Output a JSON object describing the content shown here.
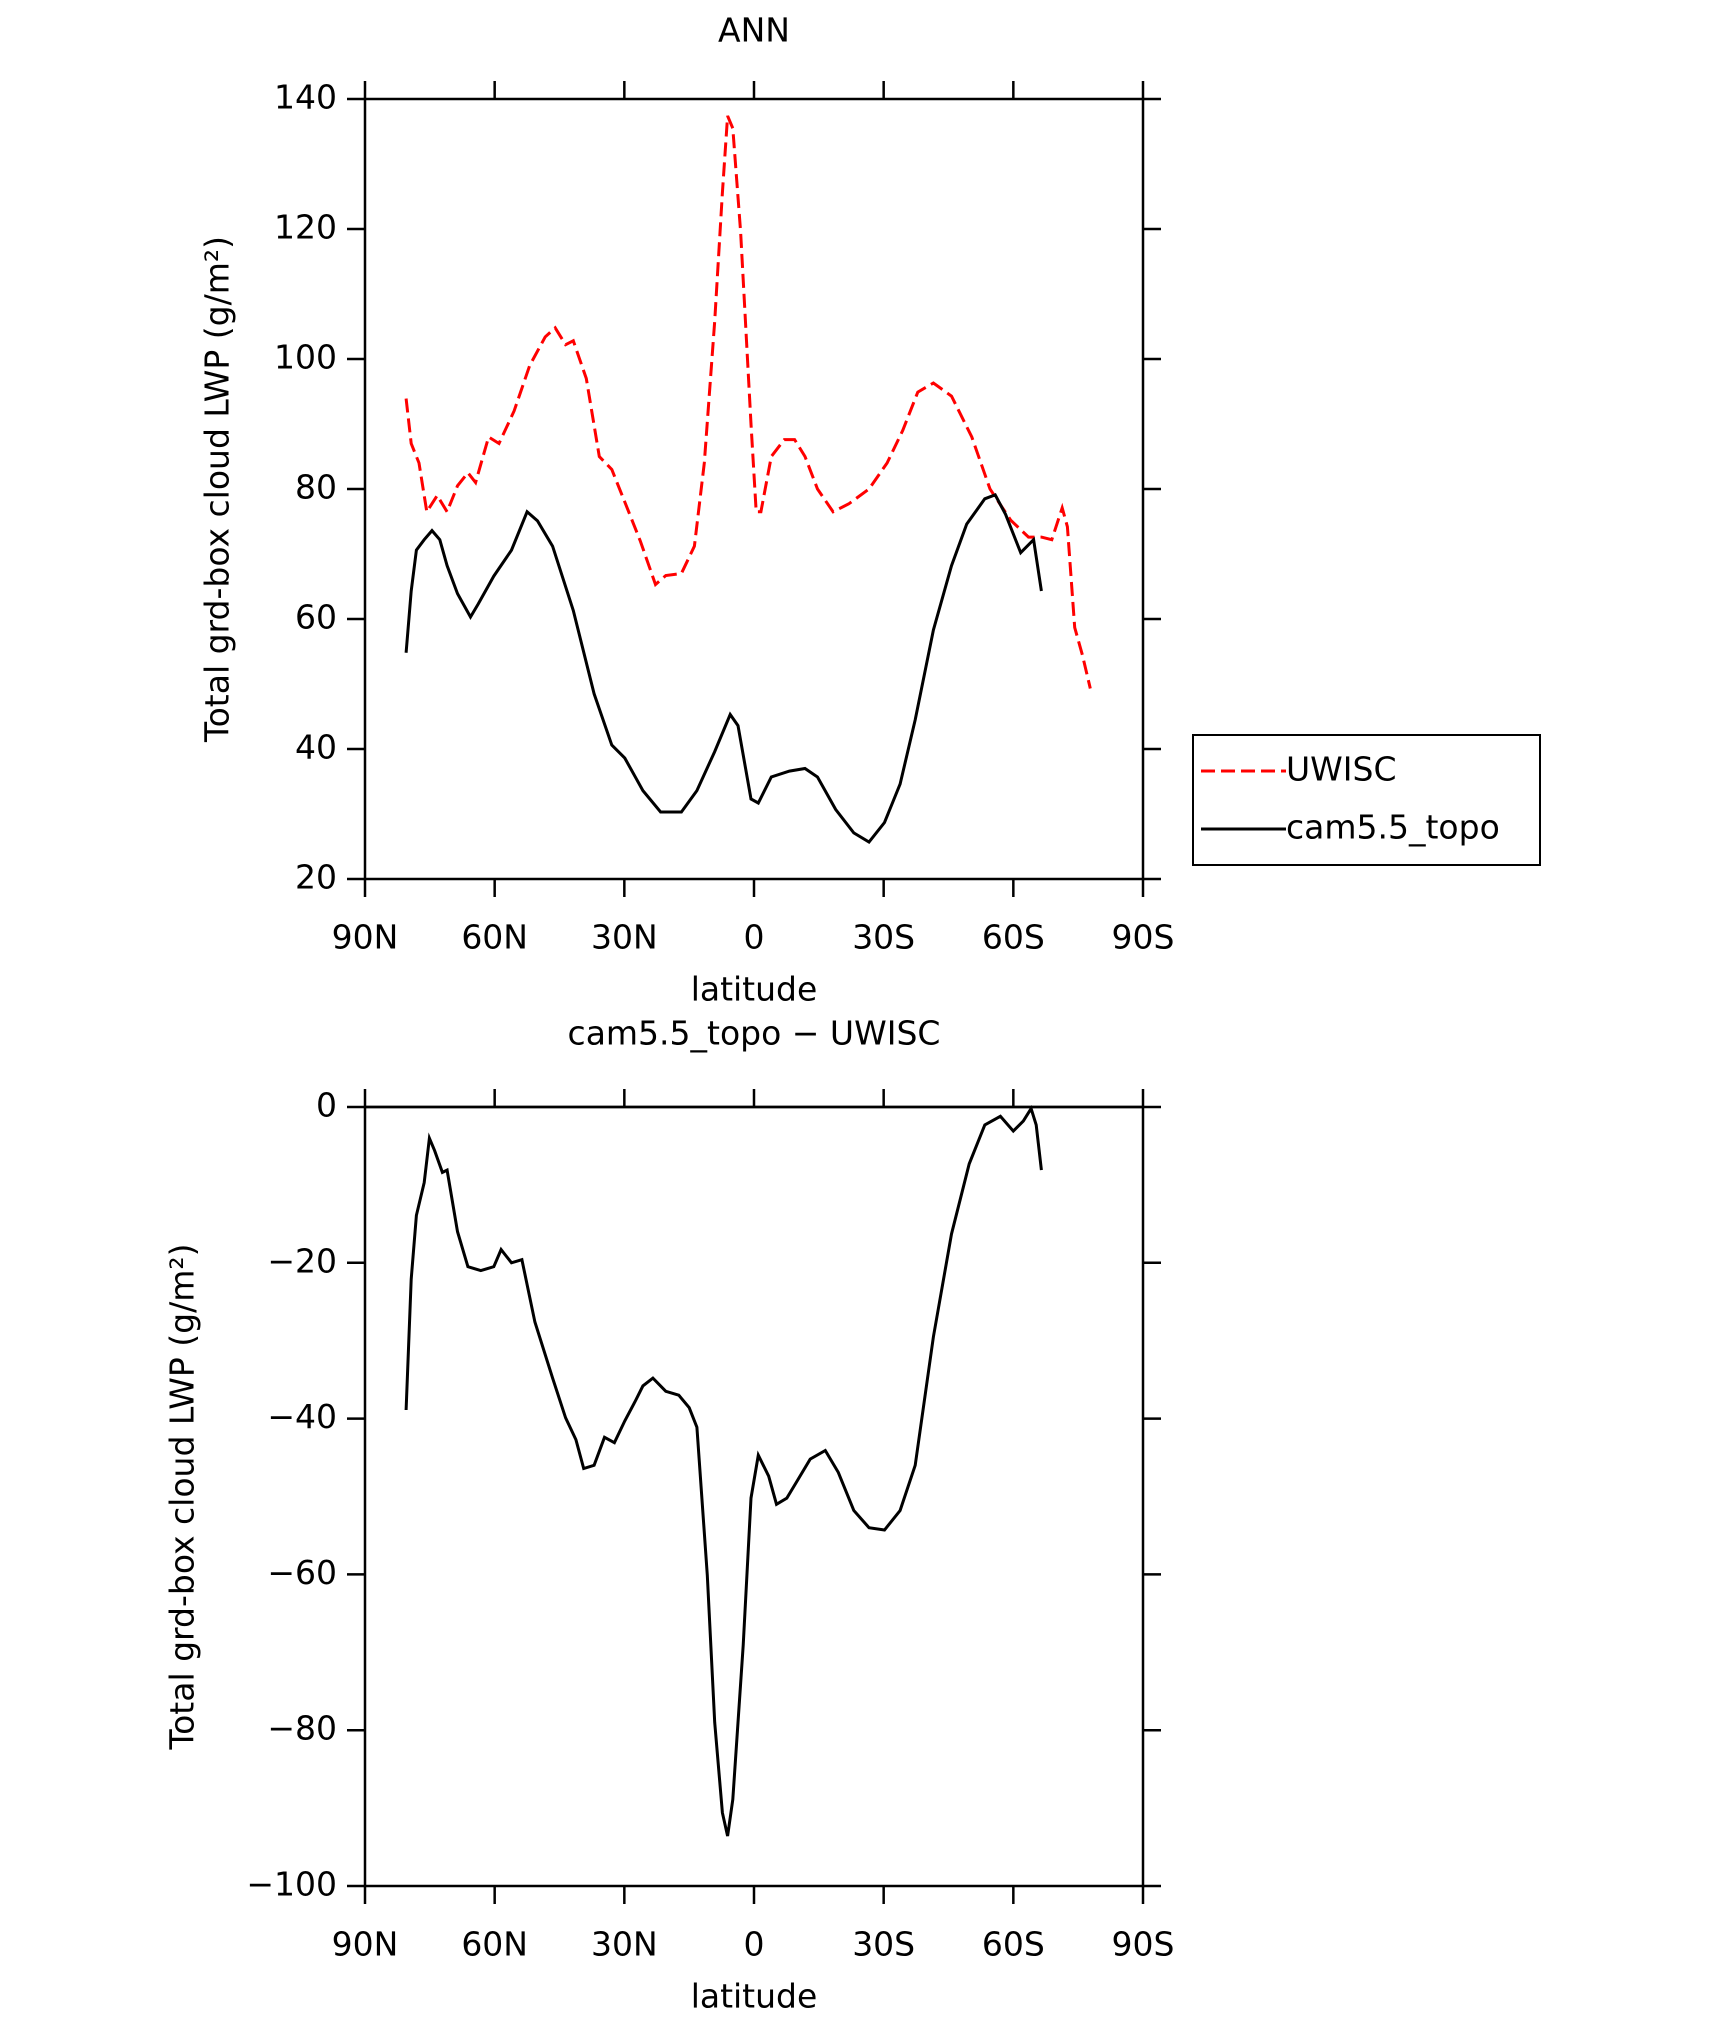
{
  "chart_data": [
    {
      "type": "line",
      "title": "ANN",
      "xlabel": "latitude",
      "ylabel": "Total grd-box cloud LWP (g/m²)",
      "xlim": [
        90,
        -90
      ],
      "xticks": [
        {
          "value": 90,
          "label": "90N"
        },
        {
          "value": 60,
          "label": "60N"
        },
        {
          "value": 30,
          "label": "30N"
        },
        0,
        {
          "value": -30,
          "label": "30S"
        },
        {
          "value": -60,
          "label": "60S"
        },
        {
          "value": -90,
          "label": "90S"
        }
      ],
      "ylim": [
        20,
        140
      ],
      "yticks": [
        20,
        40,
        60,
        80,
        100,
        120,
        140
      ],
      "legend": "right",
      "series": [
        {
          "name": "UWISC",
          "color": "#ff0000",
          "linestyle": "dashed",
          "x": [
            80.5,
            79.3,
            77.5,
            75.7,
            73.3,
            71,
            68.6,
            66.2,
            64.4,
            61.4,
            59,
            55.5,
            51.9,
            48.3,
            46,
            43.6,
            41.8,
            38.8,
            35.8,
            32.9,
            29.9,
            26.3,
            22.8,
            20.4,
            16.8,
            13.8,
            11.5,
            9.1,
            7.3,
            6.1,
            4.9,
            3.1,
            0.7,
            -0.5,
            -1.6,
            -4,
            -7,
            -9.4,
            -11.8,
            -14.7,
            -18.3,
            -21.9,
            -26.6,
            -30.8,
            -34.4,
            -37.9,
            -41.5,
            -45.7,
            -50.4,
            -54.6,
            -59.4,
            -63.5,
            -66.5,
            -68.9,
            -71.3,
            -72.5,
            -74.2,
            -76,
            -77.8
          ],
          "values": [
            93.9,
            87,
            84,
            76.5,
            79,
            76.5,
            80.5,
            82.5,
            81,
            88,
            87,
            92,
            99,
            103.4,
            104.8,
            102.2,
            102.8,
            97,
            85,
            83,
            78,
            72,
            65.3,
            66.7,
            67,
            71.2,
            84,
            105.8,
            125.6,
            137.4,
            135.5,
            119.6,
            90,
            76.5,
            76.5,
            85,
            87.6,
            87.6,
            85,
            80,
            76.5,
            77.7,
            80,
            84,
            89,
            94.9,
            96.3,
            94.3,
            88,
            80,
            75.2,
            72.6,
            72.6,
            72.2,
            77.1,
            74.2,
            58.7,
            54.4,
            49.3
          ]
        },
        {
          "name": "cam5.5_topo",
          "color": "#000000",
          "linestyle": "solid",
          "x": [
            80.5,
            79.3,
            78.1,
            76.3,
            74.5,
            72.7,
            71,
            68.6,
            65.6,
            63.8,
            60.2,
            56.1,
            52.5,
            50.1,
            46.6,
            41.8,
            37,
            32.9,
            29.9,
            25.7,
            21.6,
            16.8,
            13.2,
            9.1,
            5.5,
            3.7,
            0.7,
            -1,
            -4,
            -8.2,
            -11.8,
            -14.7,
            -18.9,
            -23.1,
            -26.6,
            -30.2,
            -33.8,
            -37.3,
            -41.5,
            -45.7,
            -49.2,
            -53.4,
            -55.8,
            -58.2,
            -61.7,
            -64.7,
            -66.5
          ],
          "values": [
            54.8,
            64.3,
            70.6,
            72.2,
            73.6,
            72.2,
            68.2,
            63.9,
            60.3,
            62.3,
            66.6,
            70.6,
            76.5,
            75.1,
            71.2,
            61.3,
            48.5,
            40.6,
            38.6,
            33.6,
            30.3,
            30.3,
            33.6,
            39.6,
            45.3,
            43.6,
            32.3,
            31.7,
            35.7,
            36.6,
            37,
            35.7,
            30.7,
            27.1,
            25.7,
            28.7,
            34.6,
            44.5,
            58.3,
            68.2,
            74.6,
            78.5,
            79.1,
            76.1,
            70.2,
            72.2,
            64.3
          ]
        }
      ]
    },
    {
      "type": "line",
      "title": "cam5.5_topo − UWISC",
      "xlabel": "latitude",
      "ylabel": "Total grd-box cloud LWP (g/m²)",
      "xlim": [
        90,
        -90
      ],
      "xticks": [
        {
          "value": 90,
          "label": "90N"
        },
        {
          "value": 60,
          "label": "60N"
        },
        {
          "value": 30,
          "label": "30N"
        },
        0,
        {
          "value": -30,
          "label": "30S"
        },
        {
          "value": -60,
          "label": "60S"
        },
        {
          "value": -90,
          "label": "90S"
        }
      ],
      "ylim": [
        -100,
        0
      ],
      "yticks": [
        {
          "value": -100,
          "label": "−100"
        },
        {
          "value": -80,
          "label": "−80"
        },
        {
          "value": -60,
          "label": "−60"
        },
        {
          "value": -40,
          "label": "−40"
        },
        {
          "value": -20,
          "label": "−20"
        },
        0
      ],
      "series": [
        {
          "color": "#000000",
          "linestyle": "solid",
          "x": [
            80.5,
            79.3,
            78.1,
            76.3,
            75.1,
            73.9,
            72.1,
            71,
            68.6,
            66.2,
            63.2,
            60.2,
            58.5,
            56.1,
            53.7,
            50.7,
            46.6,
            43.6,
            41.2,
            39.4,
            37,
            34.6,
            32.3,
            29.9,
            27.5,
            25.7,
            23.4,
            20.4,
            17.4,
            15,
            13.2,
            10.8,
            9.1,
            7.3,
            6.1,
            4.9,
            2.5,
            0.7,
            -1,
            -3.4,
            -5.2,
            -7.6,
            -10,
            -13,
            -16.5,
            -19.5,
            -23.1,
            -26.6,
            -30.2,
            -33.8,
            -37.3,
            -41.5,
            -45.7,
            -49.8,
            -53.4,
            -57,
            -60,
            -62.3,
            -64.1,
            -65.3,
            -66.5
          ],
          "values": [
            -38.9,
            -22.1,
            -13.9,
            -9.7,
            -4,
            -5.6,
            -8.4,
            -8.1,
            -16,
            -20.5,
            -21,
            -20.5,
            -18.3,
            -20,
            -19.6,
            -27.6,
            -34.8,
            -39.9,
            -42.7,
            -46.4,
            -46,
            -42.4,
            -43.1,
            -40.3,
            -37.8,
            -35.8,
            -34.8,
            -36.5,
            -37,
            -38.6,
            -41.1,
            -60.1,
            -79,
            -90.6,
            -93.6,
            -88.9,
            -69.1,
            -50.2,
            -44.7,
            -47.4,
            -51,
            -50.2,
            -48,
            -45.2,
            -44.1,
            -46.9,
            -51.8,
            -54,
            -54.3,
            -51.8,
            -46,
            -29.5,
            -16.3,
            -7.3,
            -2.3,
            -1.2,
            -3.1,
            -1.8,
            -0.2,
            -2.3,
            -8.1
          ]
        }
      ]
    }
  ]
}
